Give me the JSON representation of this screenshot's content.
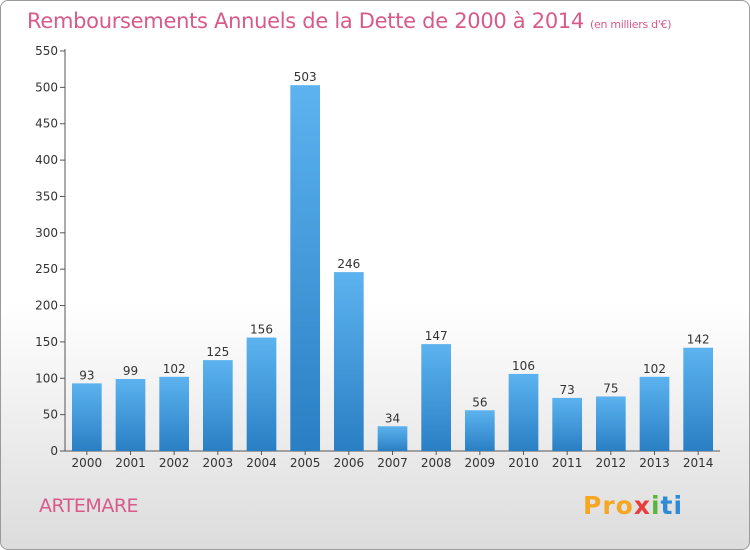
{
  "title": "Remboursements Annuels de la Dette de 2000 à 2014",
  "unit": "(en milliers d'€)",
  "commune": "ARTEMARE",
  "logo": {
    "p1": "Pro",
    "p2": "x",
    "p3": "i",
    "p4": "ti"
  },
  "colors": {
    "bar": "#4aa3e6",
    "bar_dark": "#2a7fc4",
    "title": "#d85a8a"
  },
  "chart_data": {
    "type": "bar",
    "categories": [
      "2000",
      "2001",
      "2002",
      "2003",
      "2004",
      "2005",
      "2006",
      "2007",
      "2008",
      "2009",
      "2010",
      "2011",
      "2012",
      "2013",
      "2014"
    ],
    "values": [
      93,
      99,
      102,
      125,
      156,
      503,
      246,
      34,
      147,
      56,
      106,
      73,
      75,
      102,
      142
    ],
    "ylim": [
      0,
      550
    ],
    "yticks": [
      0,
      50,
      100,
      150,
      200,
      250,
      300,
      350,
      400,
      450,
      500,
      550
    ],
    "grid": false,
    "legend": "none"
  }
}
